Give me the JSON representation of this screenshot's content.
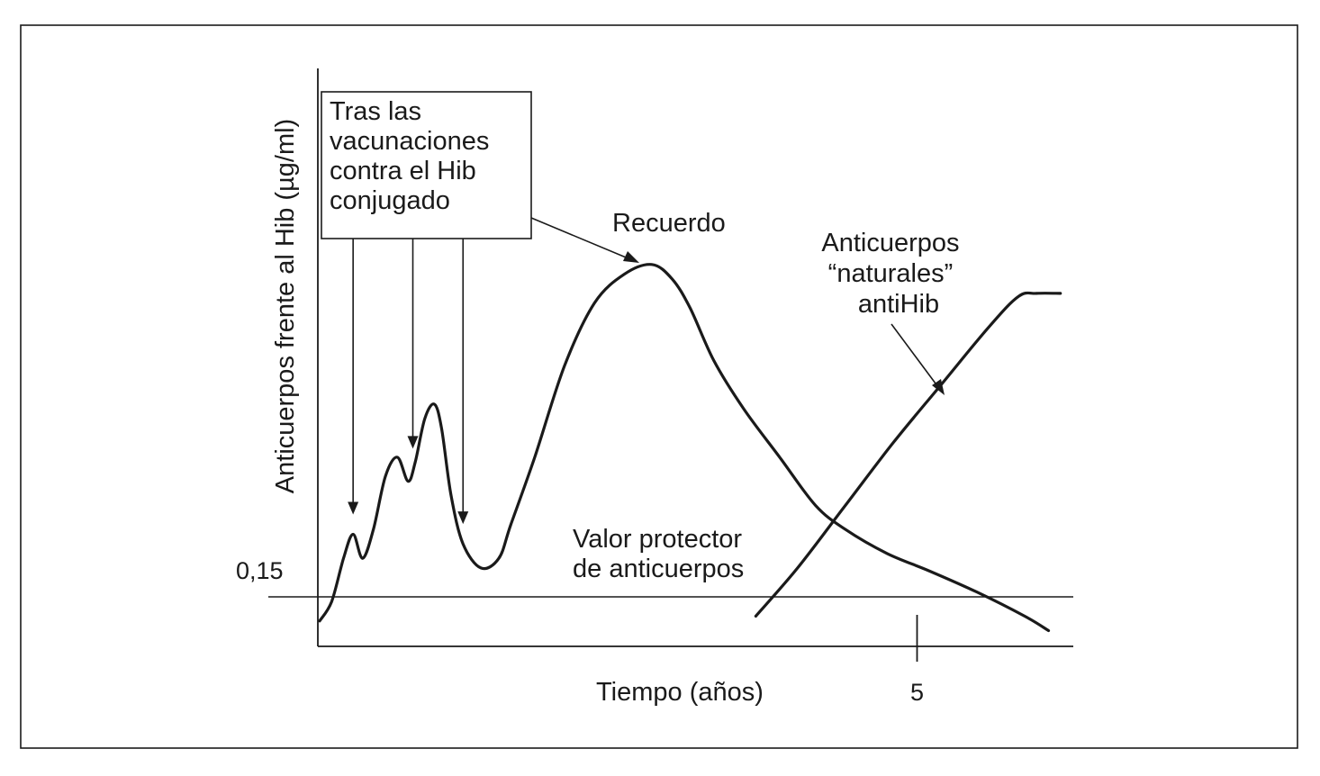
{
  "chart_data": {
    "type": "line",
    "title": "",
    "xlabel": "Tiempo (años)",
    "ylabel": "Anticuerpos frente al Hib (µg/ml)",
    "x_ticks": [
      {
        "value": 5,
        "label": "5"
      }
    ],
    "xlim": [
      0,
      6.3
    ],
    "ylim": [
      0,
      4.2
    ],
    "threshold": {
      "value": 0.15,
      "label": "0,15",
      "name": "Valor protector de anticuerpos",
      "label_lines": [
        "Valor protector",
        "de anticuerpos"
      ]
    },
    "series": [
      {
        "id": "vaccine",
        "name": "Recuerdo",
        "x": [
          0,
          0.1,
          0.2,
          0.28,
          0.36,
          0.45,
          0.55,
          0.65,
          0.74,
          0.8,
          0.88,
          0.96,
          1.02,
          1.1,
          1.2,
          1.35,
          1.5,
          1.6,
          1.8,
          2.05,
          2.3,
          2.55,
          2.78,
          2.95,
          3.1,
          3.3,
          3.55,
          3.85,
          4.15,
          4.4,
          4.75,
          5.1,
          5.5,
          5.9,
          6.1
        ],
        "y": [
          -0.1,
          0.1,
          0.55,
          0.8,
          0.55,
          0.85,
          1.4,
          1.6,
          1.35,
          1.55,
          2.0,
          2.15,
          1.9,
          1.2,
          0.7,
          0.45,
          0.55,
          0.9,
          1.6,
          2.55,
          3.2,
          3.5,
          3.6,
          3.45,
          3.15,
          2.6,
          2.1,
          1.6,
          1.1,
          0.85,
          0.6,
          0.42,
          0.2,
          -0.05,
          -0.2
        ]
      },
      {
        "id": "natural",
        "name": "Anticuerpos “naturales” antiHib",
        "label_lines": [
          "Anticuerpos",
          "“naturales”",
          "antiHib"
        ],
        "x": [
          3.65,
          4.0,
          4.4,
          4.8,
          5.2,
          5.6,
          5.85,
          6.0,
          6.2
        ],
        "y": [
          -0.05,
          0.45,
          1.1,
          1.75,
          2.35,
          2.95,
          3.27,
          3.3,
          3.3
        ]
      }
    ],
    "annotations": [
      {
        "id": "vaccination",
        "text_lines": [
          "Tras las",
          "vacunaciones",
          "contra el Hib",
          "conjugado"
        ],
        "points_x": [
          0.28,
          0.78,
          1.2
        ]
      }
    ],
    "grid": false,
    "legend": "none"
  }
}
